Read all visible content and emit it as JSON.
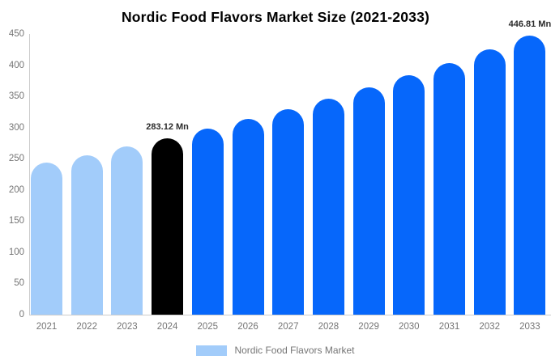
{
  "title": "Nordic Food Flavors Market Size (2021-2033)",
  "legend": {
    "label": "Nordic Food Flavors Market",
    "swatch_color": "#a2ccfa"
  },
  "chart_data": {
    "type": "bar",
    "title": "Nordic Food Flavors Market Size (2021-2033)",
    "unit": "Mn",
    "categories": [
      "2021",
      "2022",
      "2023",
      "2024",
      "2025",
      "2026",
      "2027",
      "2028",
      "2029",
      "2030",
      "2031",
      "2032",
      "2033"
    ],
    "values": [
      243.2,
      255.8,
      269.1,
      283.12,
      297.9,
      313.3,
      329.6,
      346.8,
      364.8,
      383.8,
      403.8,
      424.8,
      446.81
    ],
    "bar_roles": [
      "historical",
      "historical",
      "historical",
      "highlight",
      "forecast",
      "forecast",
      "forecast",
      "forecast",
      "forecast",
      "forecast",
      "forecast",
      "forecast",
      "forecast"
    ],
    "color_map": {
      "historical": "#a2ccfa",
      "highlight": "#000000",
      "forecast": "#0667fb"
    },
    "ylim": [
      0,
      450
    ],
    "yticks": [
      0,
      50,
      100,
      150,
      200,
      250,
      300,
      350,
      400,
      450
    ],
    "grid": false,
    "legend_position": "bottom",
    "annotations": [
      {
        "category": "2024",
        "text": "283.12 Mn"
      },
      {
        "category": "2033",
        "text": "446.81 Mn"
      }
    ]
  }
}
